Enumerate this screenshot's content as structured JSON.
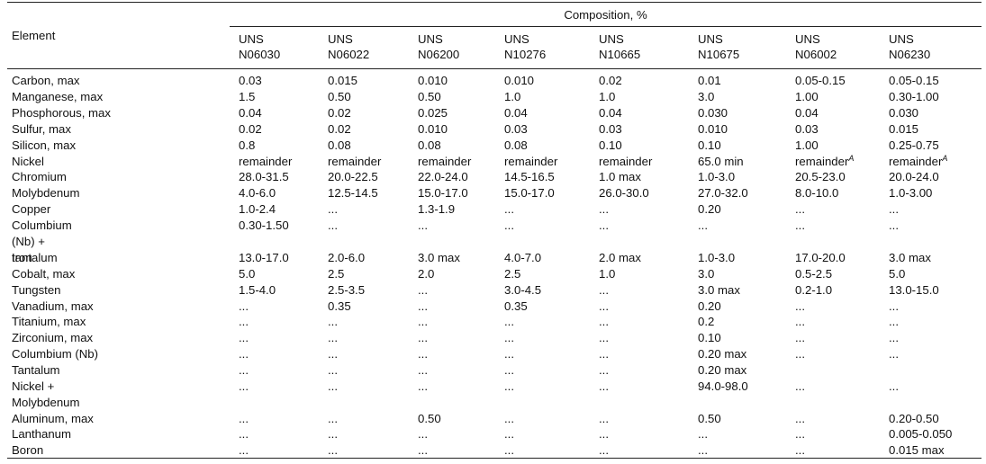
{
  "header": {
    "element_label": "Element",
    "composition_label": "Composition, %",
    "columns": [
      {
        "line1": "UNS",
        "line2": "N06030"
      },
      {
        "line1": "UNS",
        "line2": "N06022"
      },
      {
        "line1": "UNS",
        "line2": "N06200"
      },
      {
        "line1": "UNS",
        "line2": "N10276"
      },
      {
        "line1": "UNS",
        "line2": "N10665"
      },
      {
        "line1": "UNS",
        "line2": "N10675"
      },
      {
        "line1": "UNS",
        "line2": "N06002"
      },
      {
        "line1": "UNS",
        "line2": "N06230"
      }
    ]
  },
  "footnote_mark": "A",
  "rows": [
    {
      "element": "Carbon, max",
      "values": [
        "0.03",
        "0.015",
        "0.010",
        "0.010",
        "0.02",
        "0.01",
        "0.05-0.15",
        "0.05-0.15"
      ]
    },
    {
      "element": "Manganese, max",
      "values": [
        "1.5",
        "0.50",
        "0.50",
        "1.0",
        "1.0",
        "3.0",
        "1.00",
        "0.30-1.00"
      ]
    },
    {
      "element": "Phosphorous, max",
      "values": [
        "0.04",
        "0.02",
        "0.025",
        "0.04",
        "0.04",
        "0.030",
        "0.04",
        "0.030"
      ]
    },
    {
      "element": "Sulfur, max",
      "values": [
        "0.02",
        "0.02",
        "0.010",
        "0.03",
        "0.03",
        "0.010",
        "0.03",
        "0.015"
      ]
    },
    {
      "element": "Silicon, max",
      "values": [
        "0.8",
        "0.08",
        "0.08",
        "0.08",
        "0.10",
        "0.10",
        "1.00",
        "0.25-0.75"
      ]
    },
    {
      "element": "Nickel",
      "values": [
        "remainder",
        "remainder",
        "remainder",
        "remainder",
        "remainder",
        "65.0 min",
        "remainder",
        "remainder"
      ],
      "footnote_cols": [
        6,
        7
      ]
    },
    {
      "element": "Chromium",
      "values": [
        "28.0-31.5",
        "20.0-22.5",
        "22.0-24.0",
        "14.5-16.5",
        "1.0 max",
        "1.0-3.0",
        "20.5-23.0",
        "20.0-24.0"
      ]
    },
    {
      "element": "Molybdenum",
      "values": [
        "4.0-6.0",
        "12.5-14.5",
        "15.0-17.0",
        "15.0-17.0",
        "26.0-30.0",
        "27.0-32.0",
        "8.0-10.0",
        "1.0-3.00"
      ]
    },
    {
      "element": "Copper",
      "values": [
        "1.0-2.4",
        "...",
        "1.3-1.9",
        "...",
        "...",
        "0.20",
        "...",
        "..."
      ]
    },
    {
      "element": "Columbium (Nb) + tantalum",
      "values": [
        "0.30-1.50",
        "...",
        "...",
        "...",
        "...",
        "...",
        "...",
        "..."
      ]
    },
    {
      "element": "Iron",
      "values": [
        "13.0-17.0",
        "2.0-6.0",
        "3.0 max",
        "4.0-7.0",
        "2.0 max",
        "1.0-3.0",
        "17.0-20.0",
        "3.0 max"
      ]
    },
    {
      "element": "Cobalt, max",
      "values": [
        "5.0",
        "2.5",
        "2.0",
        "2.5",
        "1.0",
        "3.0",
        "0.5-2.5",
        "5.0"
      ]
    },
    {
      "element": "Tungsten",
      "values": [
        "1.5-4.0",
        "2.5-3.5",
        "...",
        "3.0-4.5",
        "...",
        "3.0 max",
        "0.2-1.0",
        "13.0-15.0"
      ]
    },
    {
      "element": "Vanadium, max",
      "values": [
        "...",
        "0.35",
        "...",
        "0.35",
        "...",
        "0.20",
        "...",
        "..."
      ]
    },
    {
      "element": "Titanium, max",
      "values": [
        "...",
        "...",
        "...",
        "...",
        "...",
        "0.2",
        "...",
        "..."
      ]
    },
    {
      "element": "Zirconium, max",
      "values": [
        "...",
        "...",
        "...",
        "...",
        "...",
        "0.10",
        "...",
        "..."
      ]
    },
    {
      "element": "Columbium (Nb)",
      "values": [
        "...",
        "...",
        "...",
        "...",
        "...",
        "0.20 max",
        "...",
        "..."
      ]
    },
    {
      "element": "Tantalum",
      "values": [
        "...",
        "...",
        "...",
        "...",
        "...",
        "0.20 max",
        "",
        ""
      ]
    },
    {
      "element": "Nickel + Molybdenum",
      "values": [
        "...",
        "...",
        "...",
        "...",
        "...",
        "94.0-98.0",
        "...",
        "..."
      ]
    },
    {
      "element": "Aluminum, max",
      "values": [
        "...",
        "...",
        "0.50",
        "...",
        "...",
        "0.50",
        "...",
        "0.20-0.50"
      ]
    },
    {
      "element": "Lanthanum",
      "values": [
        "...",
        "...",
        "...",
        "...",
        "...",
        "...",
        "...",
        "0.005-0.050"
      ]
    },
    {
      "element": "Boron",
      "values": [
        "...",
        "...",
        "...",
        "...",
        "...",
        "...",
        "...",
        "0.015 max"
      ]
    }
  ]
}
